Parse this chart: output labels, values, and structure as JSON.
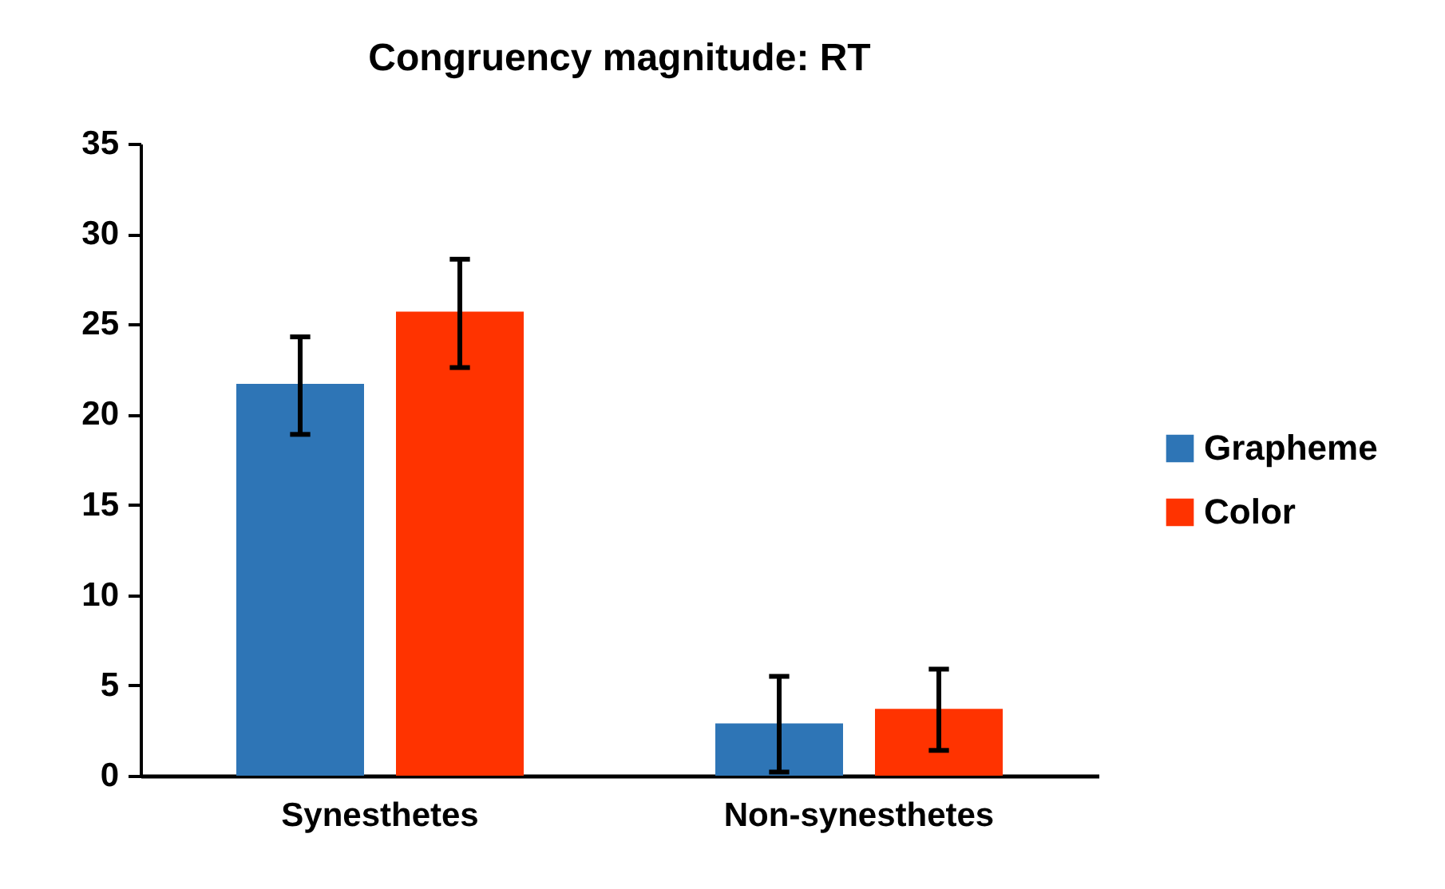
{
  "chart_data": {
    "type": "bar",
    "title": "Congruency magnitude: RT",
    "categories": [
      "Synesthetes",
      "Non-synesthetes"
    ],
    "series": [
      {
        "name": "Grapheme",
        "color": "#2e75b6",
        "values": [
          21.7,
          2.9
        ],
        "errors": [
          [
            18.9,
            24.3
          ],
          [
            0.2,
            5.5
          ]
        ]
      },
      {
        "name": "Color",
        "color": "#ff3300",
        "values": [
          25.7,
          3.7
        ],
        "errors": [
          [
            22.6,
            28.6
          ],
          [
            1.4,
            5.9
          ]
        ]
      }
    ],
    "ylim": [
      0,
      35
    ],
    "yticks": [
      0,
      5,
      10,
      15,
      20,
      25,
      30,
      35
    ],
    "grid": false,
    "legend": "right"
  }
}
